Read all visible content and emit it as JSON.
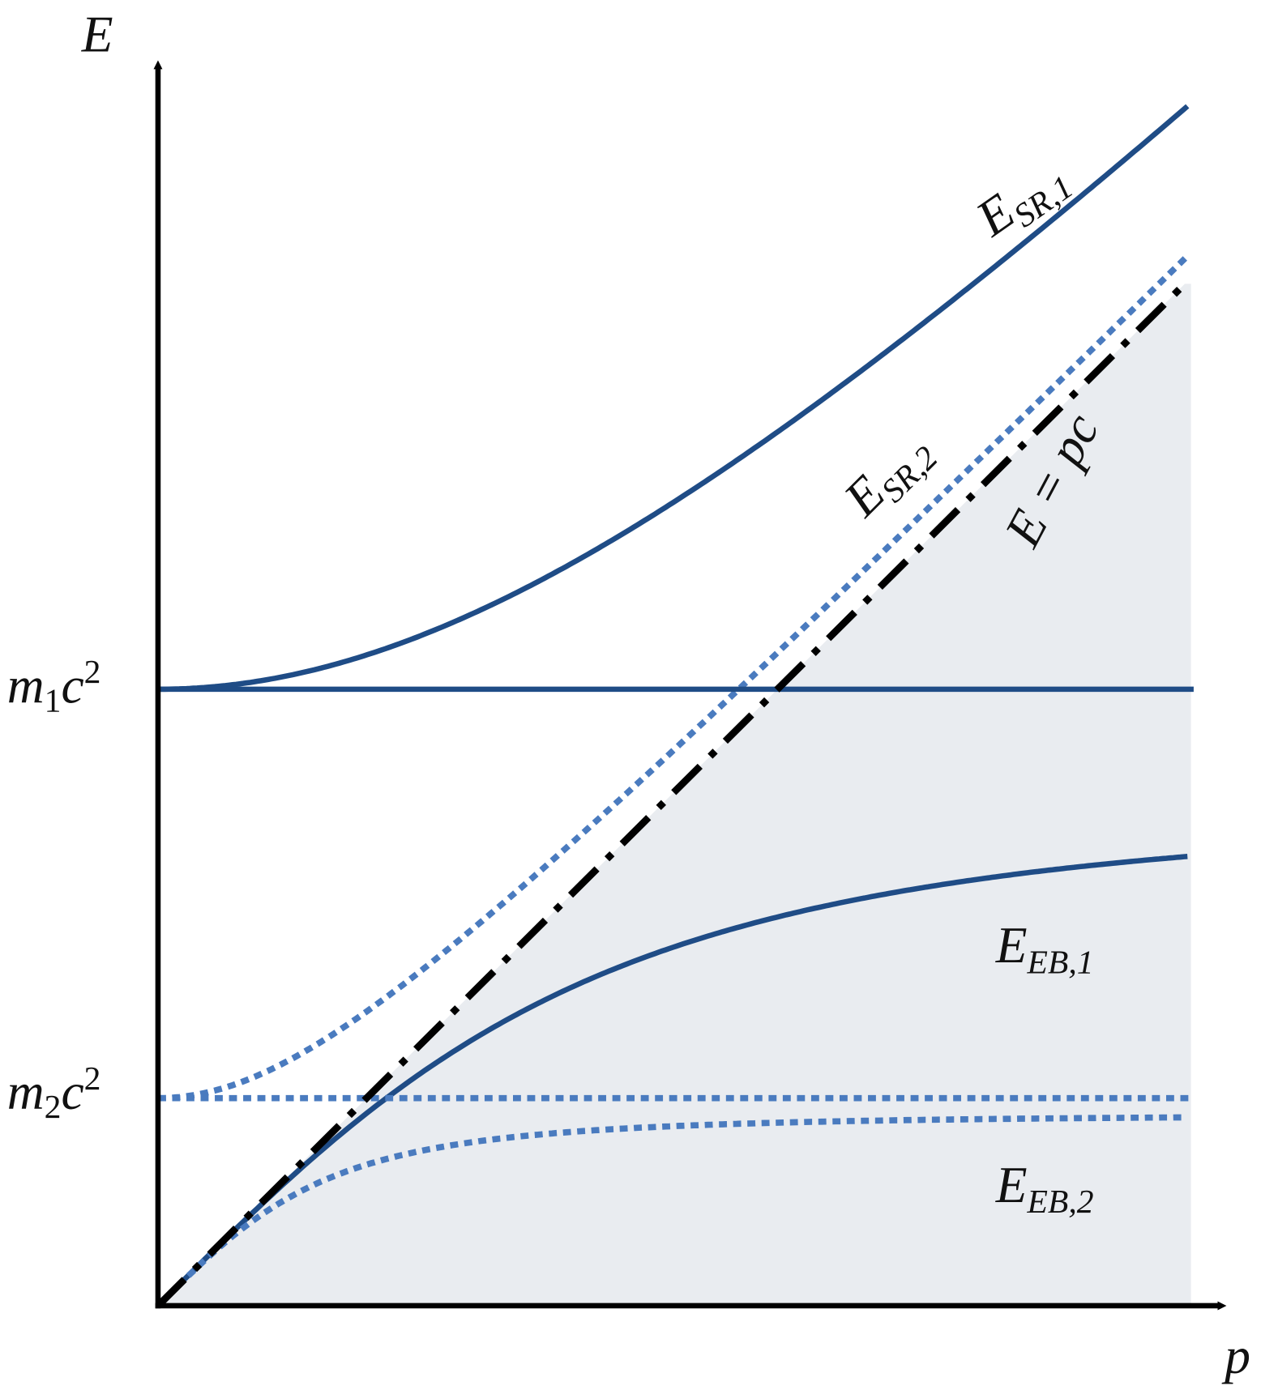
{
  "y_axis_label": "E",
  "x_axis_label": "p",
  "levels": [
    {
      "base": "m",
      "sub": "1",
      "tail": "c",
      "sup": "2"
    },
    {
      "base": "m",
      "sub": "2",
      "tail": "c",
      "sup": "2"
    }
  ],
  "curve_labels": [
    {
      "base": "E",
      "sub": "SR,1"
    },
    {
      "base": "E",
      "sub": "SR,2"
    },
    {
      "base": "E",
      "sub": "EB,1"
    },
    {
      "base": "E",
      "sub": "EB,2"
    }
  ],
  "light_line_label": "E = pc"
}
